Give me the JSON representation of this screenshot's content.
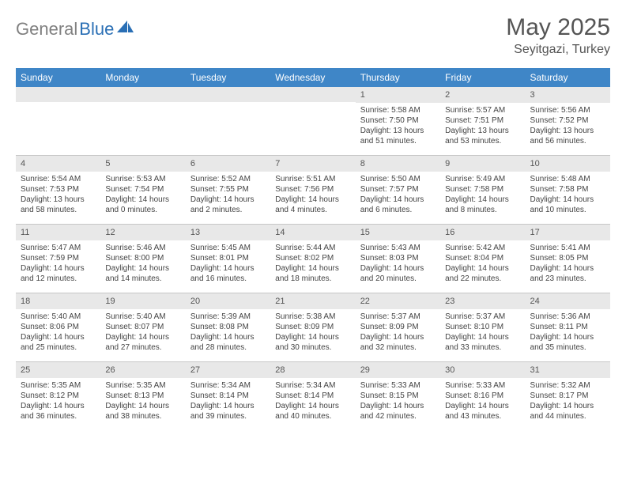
{
  "logo": {
    "part1": "General",
    "part2": "Blue"
  },
  "title": "May 2025",
  "location": "Seyitgazi, Turkey",
  "weekdays": [
    "Sunday",
    "Monday",
    "Tuesday",
    "Wednesday",
    "Thursday",
    "Friday",
    "Saturday"
  ],
  "colors": {
    "header_bar": "#3f86c7",
    "daynum_bg": "#e8e8e8",
    "divider": "#c7c7c7",
    "logo_gray": "#808080",
    "logo_blue": "#2a6fb5"
  },
  "weeks": [
    [
      {
        "num": "",
        "sunrise": "",
        "sunset": "",
        "daylight": ""
      },
      {
        "num": "",
        "sunrise": "",
        "sunset": "",
        "daylight": ""
      },
      {
        "num": "",
        "sunrise": "",
        "sunset": "",
        "daylight": ""
      },
      {
        "num": "",
        "sunrise": "",
        "sunset": "",
        "daylight": ""
      },
      {
        "num": "1",
        "sunrise": "Sunrise: 5:58 AM",
        "sunset": "Sunset: 7:50 PM",
        "daylight": "Daylight: 13 hours and 51 minutes."
      },
      {
        "num": "2",
        "sunrise": "Sunrise: 5:57 AM",
        "sunset": "Sunset: 7:51 PM",
        "daylight": "Daylight: 13 hours and 53 minutes."
      },
      {
        "num": "3",
        "sunrise": "Sunrise: 5:56 AM",
        "sunset": "Sunset: 7:52 PM",
        "daylight": "Daylight: 13 hours and 56 minutes."
      }
    ],
    [
      {
        "num": "4",
        "sunrise": "Sunrise: 5:54 AM",
        "sunset": "Sunset: 7:53 PM",
        "daylight": "Daylight: 13 hours and 58 minutes."
      },
      {
        "num": "5",
        "sunrise": "Sunrise: 5:53 AM",
        "sunset": "Sunset: 7:54 PM",
        "daylight": "Daylight: 14 hours and 0 minutes."
      },
      {
        "num": "6",
        "sunrise": "Sunrise: 5:52 AM",
        "sunset": "Sunset: 7:55 PM",
        "daylight": "Daylight: 14 hours and 2 minutes."
      },
      {
        "num": "7",
        "sunrise": "Sunrise: 5:51 AM",
        "sunset": "Sunset: 7:56 PM",
        "daylight": "Daylight: 14 hours and 4 minutes."
      },
      {
        "num": "8",
        "sunrise": "Sunrise: 5:50 AM",
        "sunset": "Sunset: 7:57 PM",
        "daylight": "Daylight: 14 hours and 6 minutes."
      },
      {
        "num": "9",
        "sunrise": "Sunrise: 5:49 AM",
        "sunset": "Sunset: 7:58 PM",
        "daylight": "Daylight: 14 hours and 8 minutes."
      },
      {
        "num": "10",
        "sunrise": "Sunrise: 5:48 AM",
        "sunset": "Sunset: 7:58 PM",
        "daylight": "Daylight: 14 hours and 10 minutes."
      }
    ],
    [
      {
        "num": "11",
        "sunrise": "Sunrise: 5:47 AM",
        "sunset": "Sunset: 7:59 PM",
        "daylight": "Daylight: 14 hours and 12 minutes."
      },
      {
        "num": "12",
        "sunrise": "Sunrise: 5:46 AM",
        "sunset": "Sunset: 8:00 PM",
        "daylight": "Daylight: 14 hours and 14 minutes."
      },
      {
        "num": "13",
        "sunrise": "Sunrise: 5:45 AM",
        "sunset": "Sunset: 8:01 PM",
        "daylight": "Daylight: 14 hours and 16 minutes."
      },
      {
        "num": "14",
        "sunrise": "Sunrise: 5:44 AM",
        "sunset": "Sunset: 8:02 PM",
        "daylight": "Daylight: 14 hours and 18 minutes."
      },
      {
        "num": "15",
        "sunrise": "Sunrise: 5:43 AM",
        "sunset": "Sunset: 8:03 PM",
        "daylight": "Daylight: 14 hours and 20 minutes."
      },
      {
        "num": "16",
        "sunrise": "Sunrise: 5:42 AM",
        "sunset": "Sunset: 8:04 PM",
        "daylight": "Daylight: 14 hours and 22 minutes."
      },
      {
        "num": "17",
        "sunrise": "Sunrise: 5:41 AM",
        "sunset": "Sunset: 8:05 PM",
        "daylight": "Daylight: 14 hours and 23 minutes."
      }
    ],
    [
      {
        "num": "18",
        "sunrise": "Sunrise: 5:40 AM",
        "sunset": "Sunset: 8:06 PM",
        "daylight": "Daylight: 14 hours and 25 minutes."
      },
      {
        "num": "19",
        "sunrise": "Sunrise: 5:40 AM",
        "sunset": "Sunset: 8:07 PM",
        "daylight": "Daylight: 14 hours and 27 minutes."
      },
      {
        "num": "20",
        "sunrise": "Sunrise: 5:39 AM",
        "sunset": "Sunset: 8:08 PM",
        "daylight": "Daylight: 14 hours and 28 minutes."
      },
      {
        "num": "21",
        "sunrise": "Sunrise: 5:38 AM",
        "sunset": "Sunset: 8:09 PM",
        "daylight": "Daylight: 14 hours and 30 minutes."
      },
      {
        "num": "22",
        "sunrise": "Sunrise: 5:37 AM",
        "sunset": "Sunset: 8:09 PM",
        "daylight": "Daylight: 14 hours and 32 minutes."
      },
      {
        "num": "23",
        "sunrise": "Sunrise: 5:37 AM",
        "sunset": "Sunset: 8:10 PM",
        "daylight": "Daylight: 14 hours and 33 minutes."
      },
      {
        "num": "24",
        "sunrise": "Sunrise: 5:36 AM",
        "sunset": "Sunset: 8:11 PM",
        "daylight": "Daylight: 14 hours and 35 minutes."
      }
    ],
    [
      {
        "num": "25",
        "sunrise": "Sunrise: 5:35 AM",
        "sunset": "Sunset: 8:12 PM",
        "daylight": "Daylight: 14 hours and 36 minutes."
      },
      {
        "num": "26",
        "sunrise": "Sunrise: 5:35 AM",
        "sunset": "Sunset: 8:13 PM",
        "daylight": "Daylight: 14 hours and 38 minutes."
      },
      {
        "num": "27",
        "sunrise": "Sunrise: 5:34 AM",
        "sunset": "Sunset: 8:14 PM",
        "daylight": "Daylight: 14 hours and 39 minutes."
      },
      {
        "num": "28",
        "sunrise": "Sunrise: 5:34 AM",
        "sunset": "Sunset: 8:14 PM",
        "daylight": "Daylight: 14 hours and 40 minutes."
      },
      {
        "num": "29",
        "sunrise": "Sunrise: 5:33 AM",
        "sunset": "Sunset: 8:15 PM",
        "daylight": "Daylight: 14 hours and 42 minutes."
      },
      {
        "num": "30",
        "sunrise": "Sunrise: 5:33 AM",
        "sunset": "Sunset: 8:16 PM",
        "daylight": "Daylight: 14 hours and 43 minutes."
      },
      {
        "num": "31",
        "sunrise": "Sunrise: 5:32 AM",
        "sunset": "Sunset: 8:17 PM",
        "daylight": "Daylight: 14 hours and 44 minutes."
      }
    ]
  ]
}
